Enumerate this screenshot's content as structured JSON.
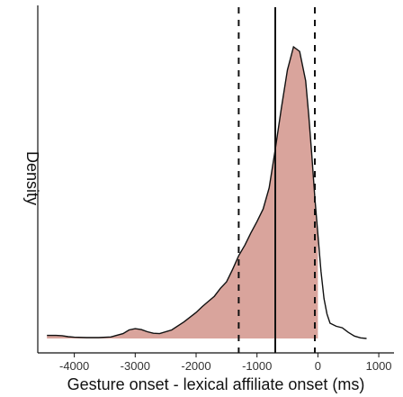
{
  "chart_data": {
    "type": "area",
    "title": "",
    "xlabel": "Gesture onset - lexical affiliate onset (ms)",
    "ylabel": "Density",
    "xlim": [
      -4600,
      1250
    ],
    "ylim": [
      0,
      1.0
    ],
    "x_ticks": [
      -4000,
      -3000,
      -2000,
      -1000,
      0,
      1000
    ],
    "x_tick_labels": [
      "-4000",
      "-3000",
      "-2000",
      "-1000",
      "0",
      "1000"
    ],
    "grid": false,
    "fill_color": "#d9a49c",
    "line_color": "#111111",
    "density_curve": {
      "x": [
        -4450,
        -4300,
        -4200,
        -4100,
        -4000,
        -3800,
        -3600,
        -3400,
        -3200,
        -3100,
        -3000,
        -2900,
        -2800,
        -2700,
        -2600,
        -2400,
        -2200,
        -2000,
        -1900,
        -1800,
        -1700,
        -1600,
        -1500,
        -1400,
        -1300,
        -1200,
        -1100,
        -1000,
        -900,
        -800,
        -700,
        -600,
        -500,
        -400,
        -300,
        -200,
        -150,
        -100,
        -50,
        0,
        50,
        100,
        150,
        200,
        300,
        400,
        500,
        600,
        700,
        800
      ],
      "y": [
        0.01,
        0.01,
        0.009,
        0.006,
        0.004,
        0.003,
        0.003,
        0.005,
        0.016,
        0.028,
        0.032,
        0.029,
        0.022,
        0.017,
        0.016,
        0.028,
        0.054,
        0.085,
        0.104,
        0.121,
        0.138,
        0.164,
        0.185,
        0.226,
        0.271,
        0.305,
        0.345,
        0.382,
        0.423,
        0.492,
        0.618,
        0.753,
        0.877,
        0.953,
        0.938,
        0.842,
        0.73,
        0.6,
        0.46,
        0.34,
        0.22,
        0.13,
        0.08,
        0.05,
        0.04,
        0.035,
        0.02,
        0.008,
        0.002,
        0.0
      ]
    },
    "shaded_range": [
      -4450,
      0
    ],
    "vertical_lines": [
      {
        "x": -1300,
        "style": "dashed"
      },
      {
        "x": -700,
        "style": "solid"
      },
      {
        "x": -50,
        "style": "dashed"
      }
    ]
  }
}
